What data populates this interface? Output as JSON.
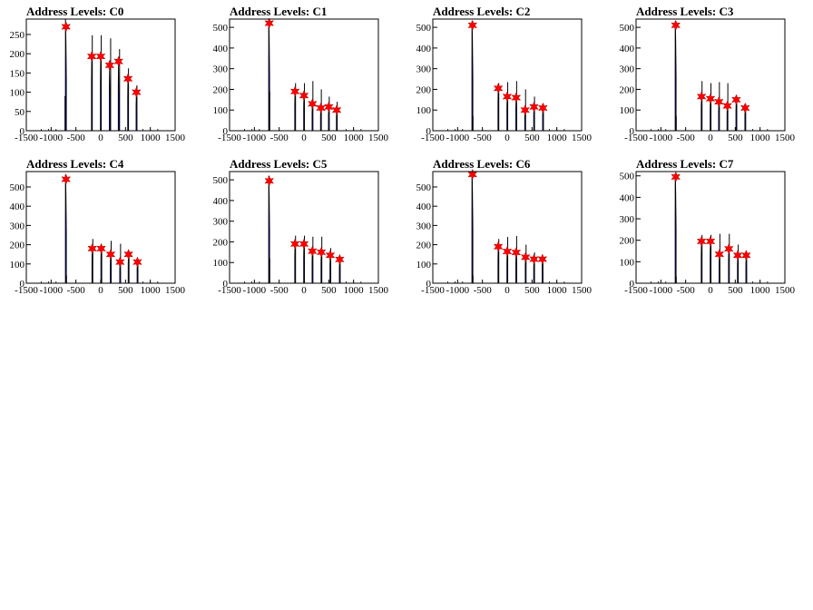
{
  "figure": {
    "background": "#ffffff",
    "histogram_color": "#0000ff",
    "outline_color": "#000000",
    "marker_color": "#ff0000",
    "marker_shape": "star"
  },
  "chart_data": [
    {
      "type": "histogram",
      "title": "Address Levels: C0",
      "xlabel": "",
      "ylabel": "",
      "xlim": [
        -1500,
        1500
      ],
      "ylim": [
        0,
        290
      ],
      "x_ticks": [
        -1500,
        -1000,
        -500,
        0,
        500,
        1000,
        1500
      ],
      "y_ticks": [
        0,
        50,
        100,
        150,
        200,
        250
      ],
      "peaks": [
        {
          "x": -700,
          "y": 270,
          "width": 20
        },
        {
          "x": -180,
          "y": 193,
          "width": 18
        },
        {
          "x": 0,
          "y": 193,
          "width": 18
        },
        {
          "x": 180,
          "y": 170,
          "width": 18
        },
        {
          "x": 360,
          "y": 180,
          "width": 18
        },
        {
          "x": 550,
          "y": 135,
          "width": 18
        },
        {
          "x": 720,
          "y": 100,
          "width": 18
        }
      ],
      "spikes": [
        {
          "x": -710,
          "y": 290
        },
        {
          "x": -720,
          "y": 90
        },
        {
          "x": -170,
          "y": 248
        },
        {
          "x": 10,
          "y": 248
        },
        {
          "x": 200,
          "y": 240
        },
        {
          "x": 380,
          "y": 212
        },
        {
          "x": 560,
          "y": 162
        },
        {
          "x": 730,
          "y": 118
        }
      ],
      "markers": [
        {
          "x": -700,
          "y": 270
        },
        {
          "x": -180,
          "y": 193
        },
        {
          "x": 0,
          "y": 193
        },
        {
          "x": 180,
          "y": 170
        },
        {
          "x": 360,
          "y": 180
        },
        {
          "x": 550,
          "y": 135
        },
        {
          "x": 720,
          "y": 100
        }
      ]
    },
    {
      "type": "histogram",
      "title": "Address Levels: C1",
      "xlabel": "",
      "ylabel": "",
      "xlim": [
        -1500,
        1500
      ],
      "ylim": [
        0,
        540
      ],
      "x_ticks": [
        -1500,
        -1000,
        -500,
        0,
        500,
        1000,
        1500
      ],
      "y_ticks": [
        0,
        100,
        200,
        300,
        400,
        500
      ],
      "peaks": [
        {
          "x": -700,
          "y": 520,
          "width": 20
        },
        {
          "x": -180,
          "y": 190,
          "width": 18
        },
        {
          "x": 0,
          "y": 170,
          "width": 18
        },
        {
          "x": 170,
          "y": 130,
          "width": 18
        },
        {
          "x": 340,
          "y": 110,
          "width": 18
        },
        {
          "x": 500,
          "y": 115,
          "width": 18
        },
        {
          "x": 660,
          "y": 100,
          "width": 18
        }
      ],
      "spikes": [
        {
          "x": -710,
          "y": 540
        },
        {
          "x": -690,
          "y": 190
        },
        {
          "x": -170,
          "y": 230
        },
        {
          "x": 10,
          "y": 230
        },
        {
          "x": 180,
          "y": 240
        },
        {
          "x": 350,
          "y": 200
        },
        {
          "x": 510,
          "y": 165
        },
        {
          "x": 670,
          "y": 140
        }
      ],
      "markers": [
        {
          "x": -700,
          "y": 520
        },
        {
          "x": -180,
          "y": 190
        },
        {
          "x": 0,
          "y": 170
        },
        {
          "x": 170,
          "y": 130
        },
        {
          "x": 340,
          "y": 110
        },
        {
          "x": 500,
          "y": 115
        },
        {
          "x": 660,
          "y": 100
        }
      ]
    },
    {
      "type": "histogram",
      "title": "Address Levels: C2",
      "xlabel": "",
      "ylabel": "",
      "xlim": [
        -1500,
        1500
      ],
      "ylim": [
        0,
        540
      ],
      "x_ticks": [
        -1500,
        -1000,
        -500,
        0,
        500,
        1000,
        1500
      ],
      "y_ticks": [
        0,
        100,
        200,
        300,
        400,
        500
      ],
      "peaks": [
        {
          "x": -700,
          "y": 510,
          "width": 20
        },
        {
          "x": -180,
          "y": 205,
          "width": 18
        },
        {
          "x": 0,
          "y": 165,
          "width": 18
        },
        {
          "x": 180,
          "y": 160,
          "width": 18
        },
        {
          "x": 360,
          "y": 100,
          "width": 18
        },
        {
          "x": 540,
          "y": 115,
          "width": 18
        },
        {
          "x": 720,
          "y": 110,
          "width": 18
        }
      ],
      "spikes": [
        {
          "x": -710,
          "y": 530
        },
        {
          "x": -690,
          "y": 70
        },
        {
          "x": -170,
          "y": 230
        },
        {
          "x": 10,
          "y": 235
        },
        {
          "x": 190,
          "y": 240
        },
        {
          "x": 370,
          "y": 200
        },
        {
          "x": 550,
          "y": 165
        },
        {
          "x": 730,
          "y": 130
        }
      ],
      "markers": [
        {
          "x": -700,
          "y": 510
        },
        {
          "x": -180,
          "y": 205
        },
        {
          "x": 0,
          "y": 165
        },
        {
          "x": 180,
          "y": 160
        },
        {
          "x": 360,
          "y": 100
        },
        {
          "x": 540,
          "y": 115
        },
        {
          "x": 720,
          "y": 110
        }
      ]
    },
    {
      "type": "histogram",
      "title": "Address Levels: C3",
      "xlabel": "",
      "ylabel": "",
      "xlim": [
        -1500,
        1500
      ],
      "ylim": [
        0,
        540
      ],
      "x_ticks": [
        -1500,
        -1000,
        -500,
        0,
        500,
        1000,
        1500
      ],
      "y_ticks": [
        0,
        100,
        200,
        300,
        400,
        500
      ],
      "peaks": [
        {
          "x": -700,
          "y": 510,
          "width": 20
        },
        {
          "x": -180,
          "y": 165,
          "width": 18
        },
        {
          "x": 0,
          "y": 155,
          "width": 18
        },
        {
          "x": 170,
          "y": 140,
          "width": 18
        },
        {
          "x": 340,
          "y": 120,
          "width": 18
        },
        {
          "x": 520,
          "y": 150,
          "width": 18
        },
        {
          "x": 700,
          "y": 110,
          "width": 18
        }
      ],
      "spikes": [
        {
          "x": -710,
          "y": 530
        },
        {
          "x": -690,
          "y": 70
        },
        {
          "x": -170,
          "y": 240
        },
        {
          "x": 10,
          "y": 230
        },
        {
          "x": 180,
          "y": 235
        },
        {
          "x": 350,
          "y": 230
        },
        {
          "x": 530,
          "y": 170
        },
        {
          "x": 710,
          "y": 130
        }
      ],
      "markers": [
        {
          "x": -700,
          "y": 510
        },
        {
          "x": -180,
          "y": 165
        },
        {
          "x": 0,
          "y": 155
        },
        {
          "x": 170,
          "y": 140
        },
        {
          "x": 340,
          "y": 120
        },
        {
          "x": 520,
          "y": 150
        },
        {
          "x": 700,
          "y": 110
        }
      ]
    },
    {
      "type": "histogram",
      "title": "Address Levels: C4",
      "xlabel": "",
      "ylabel": "",
      "xlim": [
        -1500,
        1500
      ],
      "ylim": [
        0,
        580
      ],
      "x_ticks": [
        -1500,
        -1000,
        -500,
        0,
        500,
        1000,
        1500
      ],
      "y_ticks": [
        0,
        100,
        200,
        300,
        400,
        500
      ],
      "peaks": [
        {
          "x": -700,
          "y": 540,
          "width": 20
        },
        {
          "x": -170,
          "y": 180,
          "width": 18
        },
        {
          "x": 10,
          "y": 180,
          "width": 18
        },
        {
          "x": 200,
          "y": 150,
          "width": 18
        },
        {
          "x": 390,
          "y": 110,
          "width": 18
        },
        {
          "x": 560,
          "y": 150,
          "width": 18
        },
        {
          "x": 740,
          "y": 110,
          "width": 18
        }
      ],
      "spikes": [
        {
          "x": -710,
          "y": 565
        },
        {
          "x": -690,
          "y": 40
        },
        {
          "x": -160,
          "y": 230
        },
        {
          "x": 20,
          "y": 200
        },
        {
          "x": 210,
          "y": 220
        },
        {
          "x": 400,
          "y": 205
        },
        {
          "x": 570,
          "y": 160
        },
        {
          "x": 750,
          "y": 120
        }
      ],
      "markers": [
        {
          "x": -700,
          "y": 540
        },
        {
          "x": -170,
          "y": 180
        },
        {
          "x": 10,
          "y": 180
        },
        {
          "x": 200,
          "y": 150
        },
        {
          "x": 390,
          "y": 110
        },
        {
          "x": 560,
          "y": 150
        },
        {
          "x": 740,
          "y": 110
        }
      ]
    },
    {
      "type": "histogram",
      "title": "Address Levels: C5",
      "xlabel": "",
      "ylabel": "",
      "xlim": [
        -1500,
        1500
      ],
      "ylim": [
        0,
        540
      ],
      "x_ticks": [
        -1500,
        -1000,
        -500,
        0,
        500,
        1000,
        1500
      ],
      "y_ticks": [
        0,
        100,
        200,
        300,
        400,
        500
      ],
      "peaks": [
        {
          "x": -700,
          "y": 495,
          "width": 20
        },
        {
          "x": -180,
          "y": 190,
          "width": 18
        },
        {
          "x": 0,
          "y": 190,
          "width": 18
        },
        {
          "x": 170,
          "y": 155,
          "width": 18
        },
        {
          "x": 350,
          "y": 150,
          "width": 18
        },
        {
          "x": 530,
          "y": 135,
          "width": 18
        },
        {
          "x": 720,
          "y": 115,
          "width": 18
        }
      ],
      "spikes": [
        {
          "x": -710,
          "y": 520
        },
        {
          "x": -690,
          "y": 120
        },
        {
          "x": -170,
          "y": 230
        },
        {
          "x": 10,
          "y": 230
        },
        {
          "x": 180,
          "y": 225
        },
        {
          "x": 360,
          "y": 225
        },
        {
          "x": 540,
          "y": 170
        },
        {
          "x": 730,
          "y": 130
        }
      ],
      "markers": [
        {
          "x": -700,
          "y": 495
        },
        {
          "x": -180,
          "y": 190
        },
        {
          "x": 0,
          "y": 190
        },
        {
          "x": 170,
          "y": 155
        },
        {
          "x": 350,
          "y": 150
        },
        {
          "x": 530,
          "y": 135
        },
        {
          "x": 720,
          "y": 115
        }
      ]
    },
    {
      "type": "histogram",
      "title": "Address Levels: C6",
      "xlabel": "",
      "ylabel": "",
      "xlim": [
        -1500,
        1500
      ],
      "ylim": [
        0,
        580
      ],
      "x_ticks": [
        -1500,
        -1000,
        -500,
        0,
        500,
        1000,
        1500
      ],
      "y_ticks": [
        0,
        100,
        200,
        300,
        400,
        500
      ],
      "peaks": [
        {
          "x": -700,
          "y": 565,
          "width": 20
        },
        {
          "x": -180,
          "y": 190,
          "width": 18
        },
        {
          "x": 0,
          "y": 165,
          "width": 18
        },
        {
          "x": 180,
          "y": 160,
          "width": 18
        },
        {
          "x": 370,
          "y": 135,
          "width": 18
        },
        {
          "x": 540,
          "y": 125,
          "width": 18
        },
        {
          "x": 710,
          "y": 125,
          "width": 18
        }
      ],
      "spikes": [
        {
          "x": -710,
          "y": 580
        },
        {
          "x": -690,
          "y": 40
        },
        {
          "x": -170,
          "y": 230
        },
        {
          "x": 10,
          "y": 240
        },
        {
          "x": 190,
          "y": 245
        },
        {
          "x": 380,
          "y": 200
        },
        {
          "x": 550,
          "y": 160
        },
        {
          "x": 720,
          "y": 130
        }
      ],
      "markers": [
        {
          "x": -700,
          "y": 565
        },
        {
          "x": -180,
          "y": 190
        },
        {
          "x": 0,
          "y": 165
        },
        {
          "x": 180,
          "y": 160
        },
        {
          "x": 370,
          "y": 135
        },
        {
          "x": 540,
          "y": 125
        },
        {
          "x": 710,
          "y": 125
        }
      ]
    },
    {
      "type": "histogram",
      "title": "Address Levels: C7",
      "xlabel": "",
      "ylabel": "",
      "xlim": [
        -1500,
        1500
      ],
      "ylim": [
        0,
        520
      ],
      "x_ticks": [
        -1500,
        -1000,
        -500,
        0,
        500,
        1000,
        1500
      ],
      "y_ticks": [
        0,
        100,
        200,
        300,
        400,
        500
      ],
      "peaks": [
        {
          "x": -700,
          "y": 495,
          "width": 20
        },
        {
          "x": -180,
          "y": 195,
          "width": 18
        },
        {
          "x": 0,
          "y": 195,
          "width": 18
        },
        {
          "x": 180,
          "y": 135,
          "width": 18
        },
        {
          "x": 370,
          "y": 160,
          "width": 18
        },
        {
          "x": 550,
          "y": 130,
          "width": 18
        },
        {
          "x": 720,
          "y": 130,
          "width": 18
        }
      ],
      "spikes": [
        {
          "x": -710,
          "y": 510
        },
        {
          "x": -690,
          "y": 30
        },
        {
          "x": -170,
          "y": 225
        },
        {
          "x": 10,
          "y": 225
        },
        {
          "x": 190,
          "y": 230
        },
        {
          "x": 380,
          "y": 230
        },
        {
          "x": 560,
          "y": 180
        },
        {
          "x": 730,
          "y": 140
        }
      ],
      "markers": [
        {
          "x": -700,
          "y": 495
        },
        {
          "x": -180,
          "y": 195
        },
        {
          "x": 0,
          "y": 195
        },
        {
          "x": 180,
          "y": 135
        },
        {
          "x": 370,
          "y": 160
        },
        {
          "x": 550,
          "y": 130
        },
        {
          "x": 720,
          "y": 130
        }
      ]
    }
  ]
}
